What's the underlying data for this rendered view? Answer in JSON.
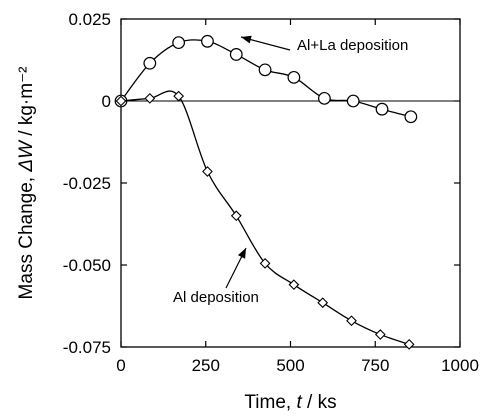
{
  "chart_data": {
    "type": "scatter",
    "xlabel": {
      "pre": "Time, ",
      "var": "t",
      "post": " / ks"
    },
    "ylabel": {
      "pre": "Mass Change, ",
      "var": "ΔW",
      "post": " / kg·m⁻²"
    },
    "xlim": [
      0,
      1000
    ],
    "ylim": [
      -0.075,
      0.025
    ],
    "x_ticks": [
      0,
      250,
      500,
      750,
      1000
    ],
    "x_tick_labels": [
      "0",
      "250",
      "500",
      "750",
      "1000"
    ],
    "y_ticks": [
      0.025,
      0,
      -0.025,
      -0.05,
      -0.075
    ],
    "y_tick_labels": [
      "0.025",
      "0",
      "-0.025",
      "-0.050",
      "-0.075"
    ],
    "grid": false,
    "zero_line": true,
    "series": [
      {
        "name": "Al+La deposition",
        "marker": "circle",
        "points": [
          [
            0,
            0.0
          ],
          [
            85,
            0.0115
          ],
          [
            170,
            0.0178
          ],
          [
            255,
            0.0182
          ],
          [
            340,
            0.0142
          ],
          [
            425,
            0.0095
          ],
          [
            510,
            0.0072
          ],
          [
            600,
            0.0008
          ],
          [
            685,
            0.0
          ],
          [
            770,
            -0.0025
          ],
          [
            855,
            -0.0048
          ]
        ]
      },
      {
        "name": "Al deposition",
        "marker": "diamond",
        "points": [
          [
            0,
            0.0
          ],
          [
            85,
            0.0008
          ],
          [
            170,
            0.0015
          ],
          [
            255,
            -0.0215
          ],
          [
            340,
            -0.035
          ],
          [
            425,
            -0.0495
          ],
          [
            510,
            -0.056
          ],
          [
            595,
            -0.0615
          ],
          [
            680,
            -0.067
          ],
          [
            765,
            -0.0712
          ],
          [
            850,
            -0.0742
          ]
        ]
      }
    ],
    "annotations": [
      {
        "text": "Al+La deposition",
        "series": "Al+La deposition"
      },
      {
        "text": "Al deposition",
        "series": "Al deposition"
      }
    ]
  }
}
